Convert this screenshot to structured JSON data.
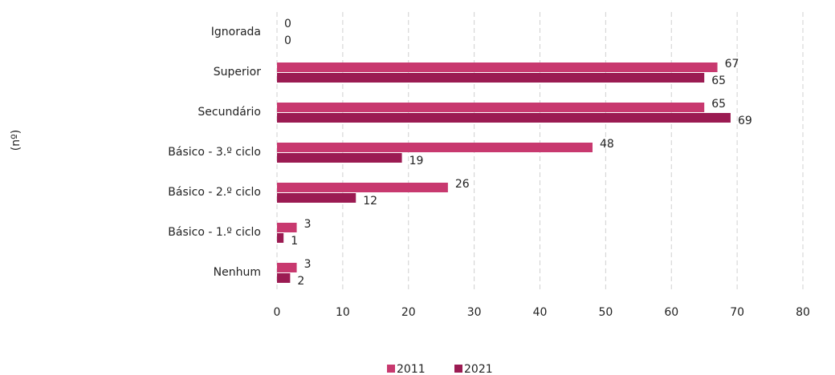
{
  "chart_data": {
    "type": "bar",
    "orientation": "horizontal",
    "y_label": "(nº)",
    "categories": [
      "Ignorada",
      "Superior",
      "Secundário",
      "Básico - 3.º ciclo",
      "Básico - 2.º ciclo",
      "Básico - 1.º ciclo",
      "Nenhum"
    ],
    "series": [
      {
        "name": "2011",
        "color": "#c8396f",
        "values": [
          0,
          67,
          65,
          48,
          26,
          3,
          3
        ]
      },
      {
        "name": "2021",
        "color": "#9b1b52",
        "values": [
          0,
          65,
          69,
          19,
          12,
          1,
          2
        ]
      }
    ],
    "xlim": [
      0,
      80
    ],
    "xticks": [
      0,
      10,
      20,
      30,
      40,
      50,
      60,
      70,
      80
    ],
    "grid": true,
    "legend": "bottom"
  }
}
